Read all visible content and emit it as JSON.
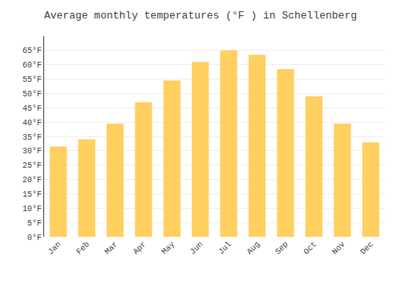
{
  "chart_data": {
    "type": "bar",
    "title": "Average monthly temperatures (°F ) in Schellenberg",
    "categories": [
      "Jan",
      "Feb",
      "Mar",
      "Apr",
      "May",
      "Jun",
      "Jul",
      "Aug",
      "Sep",
      "Oct",
      "Nov",
      "Dec"
    ],
    "values": [
      31.5,
      34.0,
      39.5,
      47.0,
      54.5,
      61.0,
      65.0,
      63.5,
      58.5,
      49.0,
      39.5,
      33.0
    ],
    "color": "#FFD060",
    "ylim": [
      0,
      70
    ],
    "yticks": [
      {
        "value": 0,
        "label": "0°F"
      },
      {
        "value": 5,
        "label": "5°F"
      },
      {
        "value": 10,
        "label": "10°F"
      },
      {
        "value": 15,
        "label": "15°F"
      },
      {
        "value": 20,
        "label": "20°F"
      },
      {
        "value": 25,
        "label": "25°F"
      },
      {
        "value": 30,
        "label": "30°F"
      },
      {
        "value": 35,
        "label": "35°F"
      },
      {
        "value": 40,
        "label": "40°F"
      },
      {
        "value": 45,
        "label": "45°F"
      },
      {
        "value": 50,
        "label": "50°F"
      },
      {
        "value": 55,
        "label": "55°F"
      },
      {
        "value": 60,
        "label": "60°F"
      },
      {
        "value": 65,
        "label": "65°F"
      }
    ],
    "grid": true
  }
}
